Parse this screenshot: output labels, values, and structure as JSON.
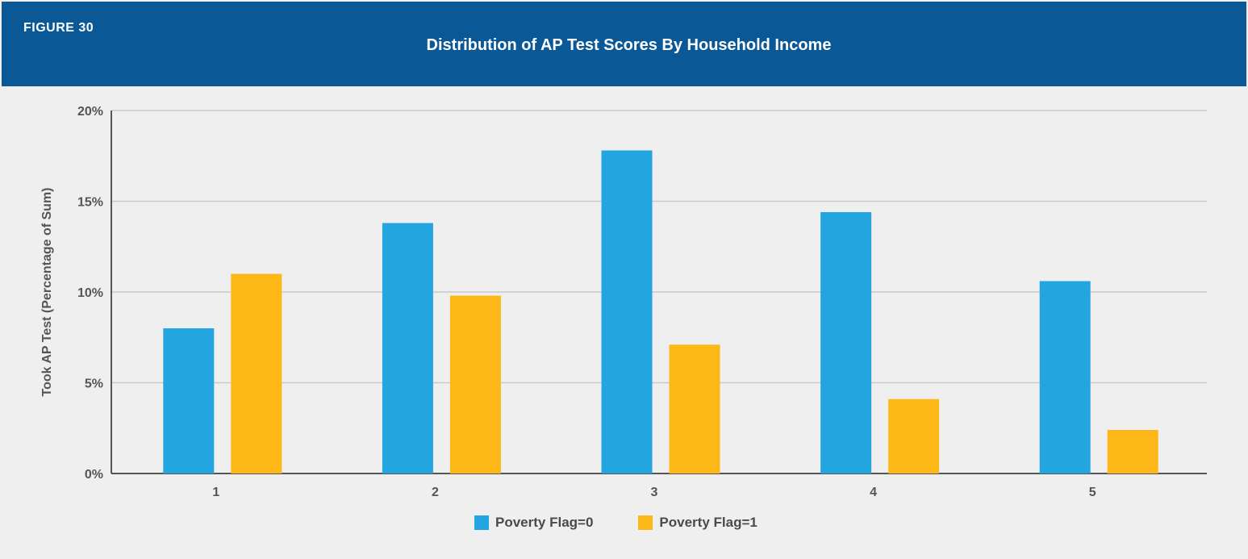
{
  "figure_label": "FIGURE 30",
  "colors": {
    "header_bg": "#0a5896",
    "panel_bg": "#efefef",
    "series_0": "#23a6e0",
    "series_1": "#fdb817",
    "gridline": "#c9c9c9",
    "axis": "#555555"
  },
  "chart_data": {
    "type": "bar",
    "title": "Distribution of AP Test Scores By Household Income",
    "xlabel": "",
    "ylabel": "Took AP Test (Percentage of Sum)",
    "categories": [
      "1",
      "2",
      "3",
      "4",
      "5"
    ],
    "series": [
      {
        "name": "Poverty Flag=0",
        "color": "#23a6e0",
        "values": [
          8.0,
          13.8,
          17.8,
          14.4,
          10.6
        ]
      },
      {
        "name": "Poverty Flag=1",
        "color": "#fdb817",
        "values": [
          11.0,
          9.8,
          7.1,
          4.1,
          2.4
        ]
      }
    ],
    "ylim": [
      0,
      20
    ],
    "yticks": [
      0,
      5,
      10,
      15,
      20
    ],
    "ytick_labels": [
      "0%",
      "5%",
      "10%",
      "15%",
      "20%"
    ],
    "grid": true,
    "legend_position": "bottom"
  }
}
